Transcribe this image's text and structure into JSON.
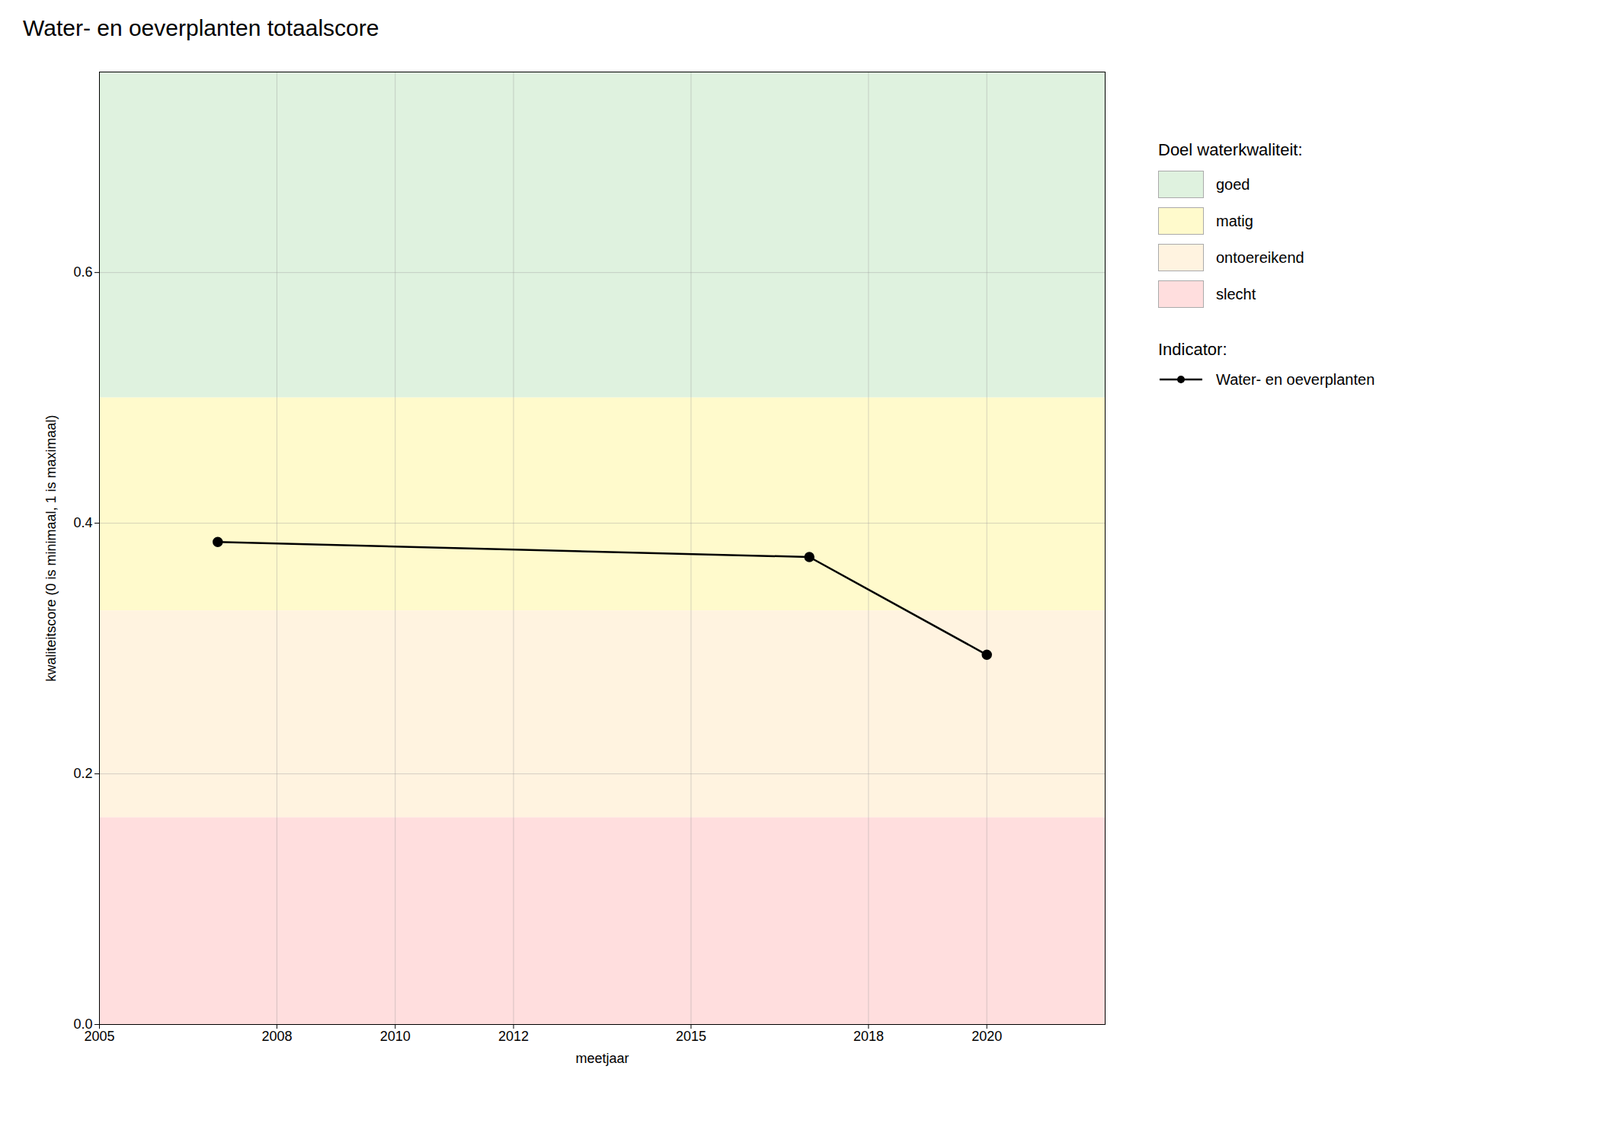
{
  "chart_data": {
    "type": "line",
    "title": "Water- en oeverplanten totaalscore",
    "x_label": "meetjaar",
    "y_label": "kwaliteitscore (0 is minimaal, 1 is maximaal)",
    "x": [
      2007,
      2017,
      2020
    ],
    "series": [
      {
        "name": "Water- en oeverplanten",
        "color": "#000000",
        "marker": "circle",
        "values": [
          0.385,
          0.373,
          0.295
        ]
      }
    ],
    "series_title": "Indicator:",
    "bands_title": "Doel waterkwaliteit:",
    "bands": [
      {
        "name": "goed",
        "ymin": 0.5,
        "ymax": 0.76,
        "color": "#dff2df"
      },
      {
        "name": "matig",
        "ymin": 0.33,
        "ymax": 0.5,
        "color": "#fffacc"
      },
      {
        "name": "ontoereikend",
        "ymin": 0.165,
        "ymax": 0.33,
        "color": "#fff3e0"
      },
      {
        "name": "slecht",
        "ymin": 0.0,
        "ymax": 0.165,
        "color": "#ffdede"
      }
    ],
    "xlim": [
      2005,
      2022
    ],
    "ylim": [
      0.0,
      0.76
    ],
    "xticks": [
      2005,
      2008,
      2010,
      2012,
      2015,
      2018,
      2020
    ],
    "yticks": [
      {
        "value": 0.0,
        "label": "0.0"
      },
      0.2,
      0.4,
      0.6
    ],
    "grid": true
  }
}
